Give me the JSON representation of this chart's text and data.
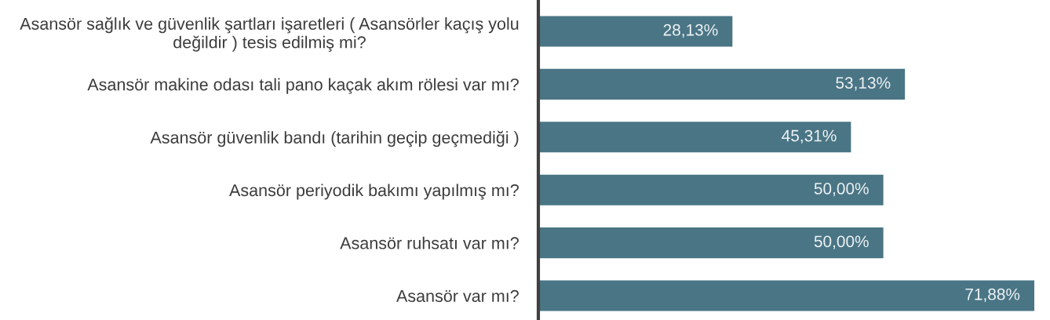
{
  "chart_data": {
    "type": "bar",
    "orientation": "horizontal",
    "categories": [
      "Asansör sağlık ve güvenlik şartları işaretleri ( Asansörler kaçış yolu\ndeğildir ) tesis edilmiş mi?",
      "Asansör makine odası tali pano kaçak akım rölesi var mı?",
      "Asansör güvenlik bandı (tarihin geçip geçmediği )",
      "Asansör periyodik bakımı yapılmış mı?",
      "Asansör ruhsatı var mı?",
      "Asansör var mı?"
    ],
    "values": [
      28.13,
      53.13,
      45.31,
      50.0,
      50.0,
      71.88
    ],
    "value_labels": [
      "28,13%",
      "53,13%",
      "45,31%",
      "50,00%",
      "50,00%",
      "71,88%"
    ],
    "color": "#4a7585",
    "tick_labels": "y",
    "grid": false,
    "legend": false
  }
}
